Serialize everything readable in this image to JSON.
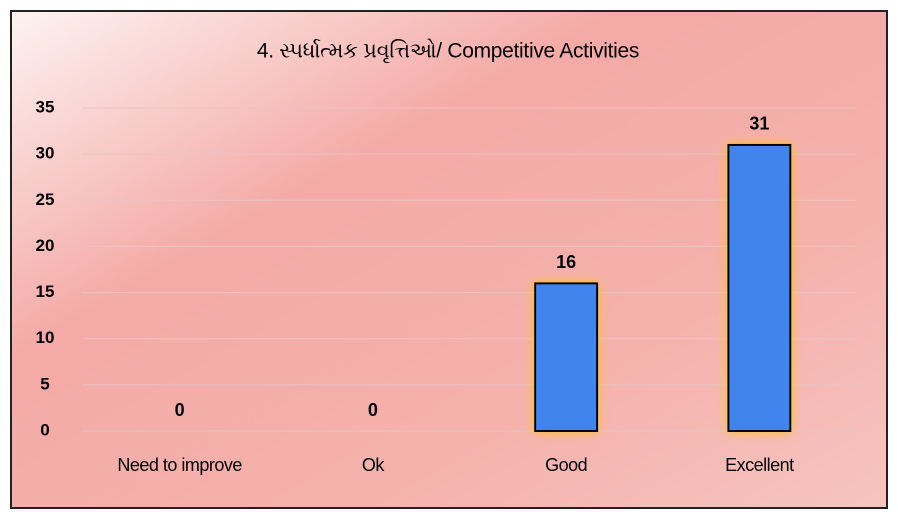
{
  "chart_data": {
    "type": "bar",
    "title": "4. સ્પર્ધાત્મક પ્રવૃત્તિઓ/ Competitive Activities",
    "categories": [
      "Need to improve",
      "Ok",
      "Good",
      "Excellent"
    ],
    "values": [
      0,
      0,
      16,
      31
    ],
    "color": "#3f84ee",
    "ylim": [
      0,
      35
    ],
    "yticks": [
      0,
      5,
      10,
      15,
      20,
      25,
      30,
      35
    ],
    "grid": true
  }
}
